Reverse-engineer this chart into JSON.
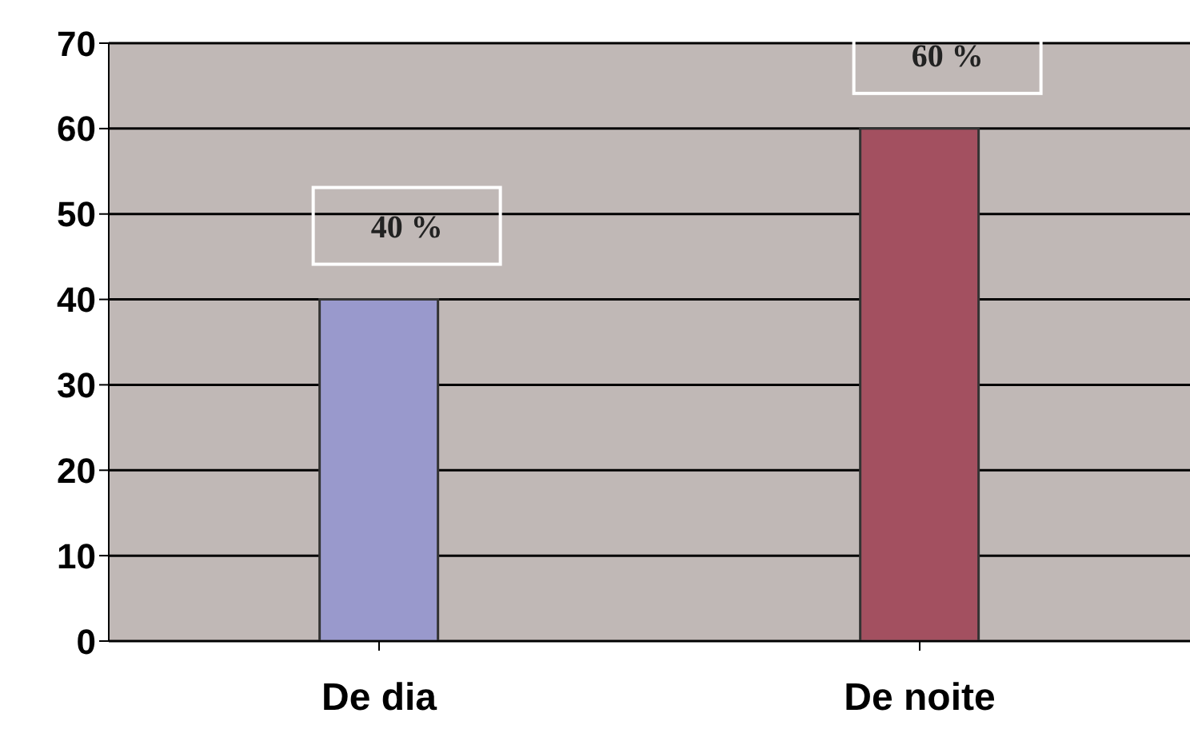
{
  "chart_data": {
    "type": "bar",
    "categories": [
      "De dia",
      "De noite"
    ],
    "values": [
      40,
      60
    ],
    "colors": [
      "#9999cc",
      "#a35060"
    ],
    "value_labels": [
      "40 %",
      "60 %"
    ],
    "ylim": [
      0,
      70
    ],
    "yticks": [
      0,
      10,
      20,
      30,
      40,
      50,
      60,
      70
    ],
    "grid": "y"
  }
}
